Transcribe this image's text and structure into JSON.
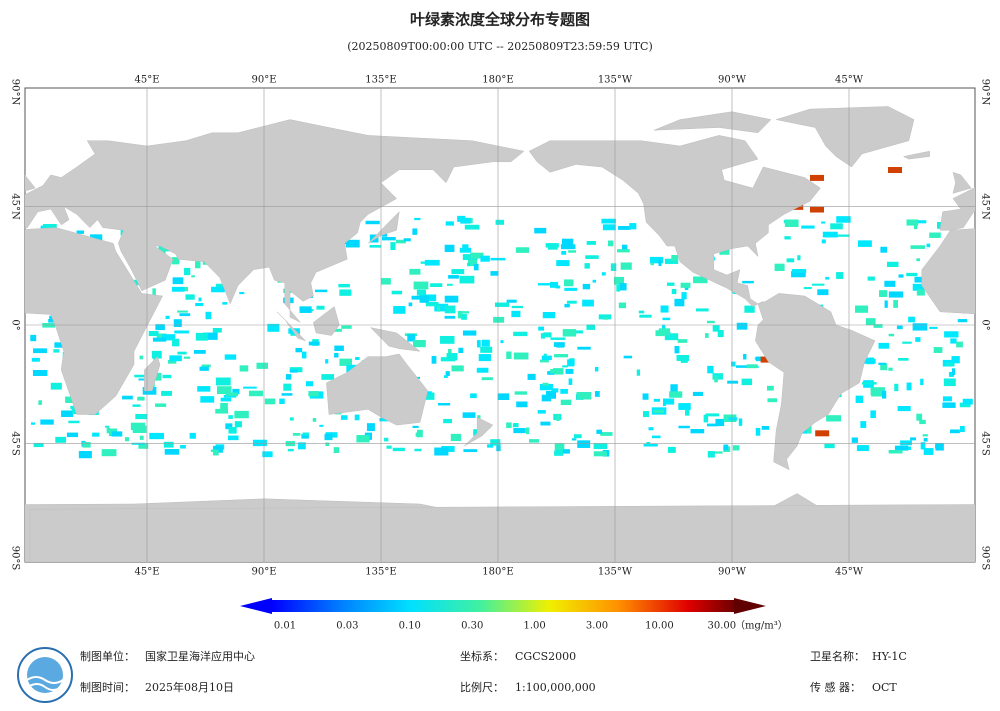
{
  "header": {
    "title": "叶绿素浓度全球分布专题图",
    "subtitle": "(20250809T00:00:00 UTC -- 20250809T23:59:59 UTC)"
  },
  "map": {
    "lon_labels": [
      "45°E",
      "90°E",
      "135°E",
      "180°E",
      "135°W",
      "90°W",
      "45°W"
    ],
    "lat_labels": [
      "90°N",
      "45°N",
      "0°",
      "45°S",
      "90°S"
    ]
  },
  "colorbar": {
    "labels": [
      "0.01",
      "0.03",
      "0.10",
      "0.30",
      "1.00",
      "3.00",
      "10.00",
      "30.00"
    ],
    "unit": "（mg/m³）"
  },
  "footer": {
    "fields": [
      {
        "label": "制图单位：",
        "value": "国家卫星海洋应用中心"
      },
      {
        "label": "制图时间：",
        "value": "2025年08月10日"
      },
      {
        "label": "坐标系：",
        "value": "CGCS2000"
      },
      {
        "label": "比例尺：",
        "value": "1:100,000,000"
      },
      {
        "label": "卫星名称：",
        "value": "HY-1C"
      },
      {
        "label": "传 感 器：",
        "value": "OCT"
      }
    ]
  }
}
